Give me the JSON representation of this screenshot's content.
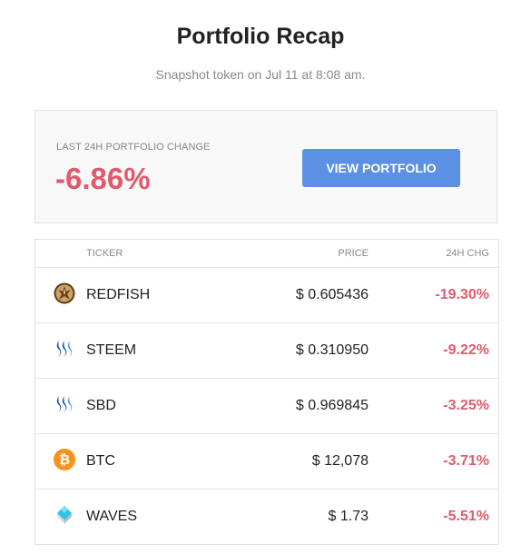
{
  "header": {
    "title": "Portfolio Recap",
    "subtitle": "Snapshot token on Jul 11 at 8:08 am."
  },
  "summary": {
    "label": "LAST 24H PORTFOLIO CHANGE",
    "value": "-6.86%",
    "button_label": "VIEW PORTFOLIO",
    "value_color": "#e05a6b",
    "button_color": "#5b90e4"
  },
  "table": {
    "columns": [
      "TICKER",
      "PRICE",
      "24H CHG"
    ],
    "rows": [
      {
        "icon": "redfish-icon",
        "ticker": "REDFISH",
        "price": "$ 0.605436",
        "change": "-19.30%"
      },
      {
        "icon": "steem-icon",
        "ticker": "STEEM",
        "price": "$ 0.310950",
        "change": "-9.22%"
      },
      {
        "icon": "sbd-icon",
        "ticker": "SBD",
        "price": "$ 0.969845",
        "change": "-3.25%"
      },
      {
        "icon": "bitcoin-icon",
        "ticker": "BTC",
        "price": "$ 12,078",
        "change": "-3.71%"
      },
      {
        "icon": "waves-icon",
        "ticker": "WAVES",
        "price": "$ 1.73",
        "change": "-5.51%"
      }
    ]
  }
}
